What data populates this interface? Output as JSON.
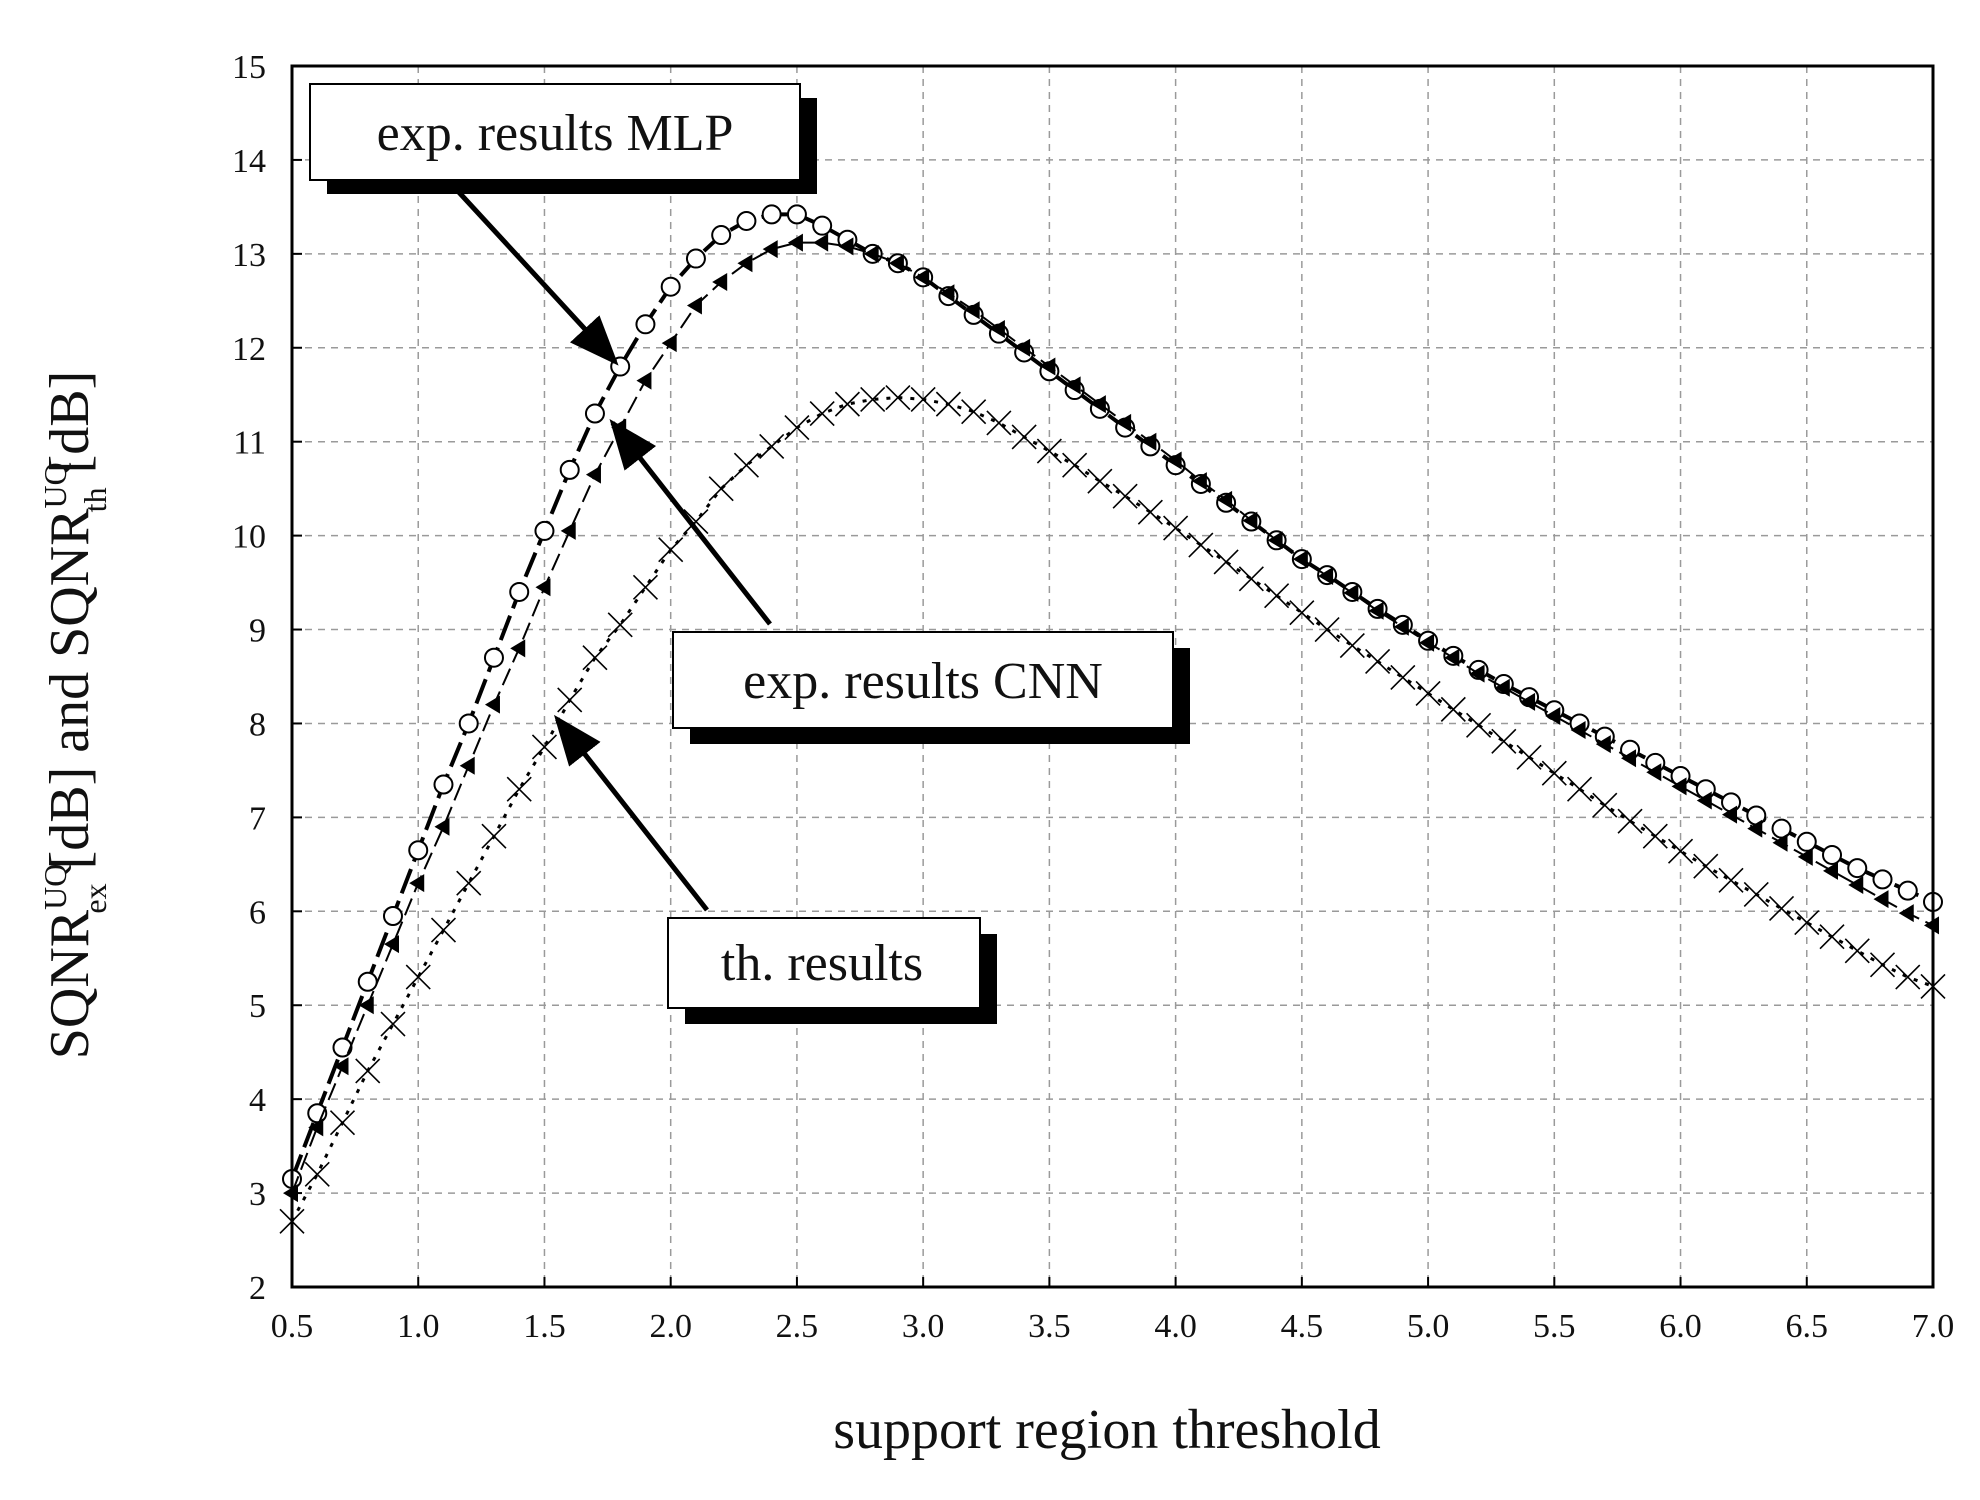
{
  "chart_data": {
    "type": "line",
    "title": "",
    "xlabel": "support region threshold",
    "ylabel": {
      "base1": "SQNR",
      "sup1": "UQ",
      "sub1": "ex",
      "mid": " [dB] and ",
      "base2": "SQNR",
      "sup2": "UQ",
      "sub2": "th",
      "end": " [dB]"
    },
    "xlim": [
      0.5,
      7.0
    ],
    "ylim": [
      2,
      15
    ],
    "xticks": [
      "0.5",
      "1.0",
      "1.5",
      "2.0",
      "2.5",
      "3.0",
      "3.5",
      "4.0",
      "4.5",
      "5.0",
      "5.5",
      "6.0",
      "6.5",
      "7.0"
    ],
    "yticks": [
      "2",
      "3",
      "4",
      "5",
      "6",
      "7",
      "8",
      "9",
      "10",
      "11",
      "12",
      "13",
      "14",
      "15"
    ],
    "grid": true,
    "series": [
      {
        "name": "exp. results MLP",
        "marker": "circle",
        "x": [
          0.5,
          0.6,
          0.7,
          0.8,
          0.9,
          1.0,
          1.1,
          1.2,
          1.3,
          1.4,
          1.5,
          1.6,
          1.7,
          1.8,
          1.9,
          2.0,
          2.1,
          2.2,
          2.3,
          2.4,
          2.5,
          2.6,
          2.7,
          2.8,
          2.9,
          3.0,
          3.1,
          3.2,
          3.3,
          3.4,
          3.5,
          3.6,
          3.7,
          3.8,
          3.9,
          4.0,
          4.1,
          4.2,
          4.3,
          4.4,
          4.5,
          4.6,
          4.7,
          4.8,
          4.9,
          5.0,
          5.1,
          5.2,
          5.3,
          5.4,
          5.5,
          5.6,
          5.7,
          5.8,
          5.9,
          6.0,
          6.1,
          6.2,
          6.3,
          6.4,
          6.5,
          6.6,
          6.7,
          6.8,
          6.9,
          7.0
        ],
        "y": [
          3.15,
          3.85,
          4.55,
          5.25,
          5.95,
          6.65,
          7.35,
          8.0,
          8.7,
          9.4,
          10.05,
          10.7,
          11.3,
          11.8,
          12.25,
          12.65,
          12.95,
          13.2,
          13.35,
          13.42,
          13.42,
          13.3,
          13.15,
          13.0,
          12.9,
          12.75,
          12.55,
          12.35,
          12.15,
          11.95,
          11.75,
          11.55,
          11.35,
          11.15,
          10.95,
          10.75,
          10.55,
          10.35,
          10.15,
          9.95,
          9.75,
          9.58,
          9.4,
          9.22,
          9.05,
          8.88,
          8.72,
          8.57,
          8.42,
          8.28,
          8.14,
          8.0,
          7.86,
          7.72,
          7.58,
          7.44,
          7.3,
          7.16,
          7.02,
          6.88,
          6.74,
          6.6,
          6.46,
          6.34,
          6.22,
          6.1
        ]
      },
      {
        "name": "exp. results CNN",
        "marker": "triangle",
        "x": [
          0.5,
          0.6,
          0.7,
          0.8,
          0.9,
          1.0,
          1.1,
          1.2,
          1.3,
          1.4,
          1.5,
          1.6,
          1.7,
          1.8,
          1.9,
          2.0,
          2.1,
          2.2,
          2.3,
          2.4,
          2.5,
          2.6,
          2.7,
          2.8,
          2.9,
          3.0,
          3.1,
          3.2,
          3.3,
          3.4,
          3.5,
          3.6,
          3.7,
          3.8,
          3.9,
          4.0,
          4.1,
          4.2,
          4.3,
          4.4,
          4.5,
          4.6,
          4.7,
          4.8,
          4.9,
          5.0,
          5.1,
          5.2,
          5.3,
          5.4,
          5.5,
          5.6,
          5.7,
          5.8,
          5.9,
          6.0,
          6.1,
          6.2,
          6.3,
          6.4,
          6.5,
          6.6,
          6.7,
          6.8,
          6.9,
          7.0
        ],
        "y": [
          3.0,
          3.7,
          4.35,
          5.0,
          5.65,
          6.3,
          6.9,
          7.55,
          8.2,
          8.8,
          9.45,
          10.05,
          10.65,
          11.15,
          11.65,
          12.05,
          12.45,
          12.7,
          12.9,
          13.05,
          13.12,
          13.12,
          13.08,
          13.0,
          12.9,
          12.75,
          12.58,
          12.4,
          12.2,
          12.0,
          11.8,
          11.6,
          11.4,
          11.2,
          11.0,
          10.8,
          10.58,
          10.38,
          10.16,
          9.95,
          9.75,
          9.57,
          9.39,
          9.2,
          9.03,
          8.86,
          8.7,
          8.53,
          8.38,
          8.23,
          8.08,
          7.93,
          7.78,
          7.63,
          7.48,
          7.33,
          7.18,
          7.03,
          6.88,
          6.73,
          6.58,
          6.43,
          6.28,
          6.13,
          5.98,
          5.85
        ]
      },
      {
        "name": "th. results",
        "marker": "cross",
        "x": [
          0.5,
          0.6,
          0.7,
          0.8,
          0.9,
          1.0,
          1.1,
          1.2,
          1.3,
          1.4,
          1.5,
          1.6,
          1.7,
          1.8,
          1.9,
          2.0,
          2.1,
          2.2,
          2.3,
          2.4,
          2.5,
          2.6,
          2.7,
          2.8,
          2.9,
          3.0,
          3.1,
          3.2,
          3.3,
          3.4,
          3.5,
          3.6,
          3.7,
          3.8,
          3.9,
          4.0,
          4.1,
          4.2,
          4.3,
          4.4,
          4.5,
          4.6,
          4.7,
          4.8,
          4.9,
          5.0,
          5.1,
          5.2,
          5.3,
          5.4,
          5.5,
          5.6,
          5.7,
          5.8,
          5.9,
          6.0,
          6.1,
          6.2,
          6.3,
          6.4,
          6.5,
          6.6,
          6.7,
          6.8,
          6.9,
          7.0
        ],
        "y": [
          2.7,
          3.2,
          3.75,
          4.3,
          4.8,
          5.3,
          5.8,
          6.3,
          6.8,
          7.3,
          7.75,
          8.25,
          8.7,
          9.05,
          9.45,
          9.85,
          10.15,
          10.5,
          10.75,
          10.95,
          11.15,
          11.3,
          11.4,
          11.45,
          11.47,
          11.45,
          11.4,
          11.32,
          11.2,
          11.05,
          10.9,
          10.75,
          10.58,
          10.42,
          10.25,
          10.08,
          9.9,
          9.72,
          9.54,
          9.36,
          9.18,
          9.0,
          8.83,
          8.66,
          8.49,
          8.32,
          8.15,
          7.98,
          7.81,
          7.64,
          7.47,
          7.3,
          7.13,
          6.96,
          6.8,
          6.64,
          6.48,
          6.33,
          6.18,
          6.03,
          5.88,
          5.73,
          5.58,
          5.43,
          5.3,
          5.2
        ]
      }
    ],
    "callouts": [
      {
        "text": "exp. results MLP",
        "arrow_to": [
          1.78,
          11.85
        ]
      },
      {
        "text": "exp. results CNN",
        "arrow_to": [
          1.77,
          11.2
        ]
      },
      {
        "text": "th. results",
        "arrow_to": [
          1.55,
          8.05
        ]
      }
    ]
  }
}
